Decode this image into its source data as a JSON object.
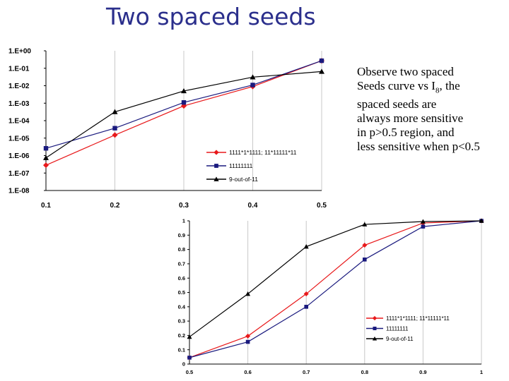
{
  "slide": {
    "title": "Two spaced seeds",
    "note_lines": [
      "Observe two spaced",
      "Seeds curve vs I",
      "spaced seeds are",
      "always more sensitive",
      "in p>0.5 region, and",
      "less sensitive when p<0.5"
    ],
    "note_subscript": "8",
    "note_suffix": ", the"
  },
  "chart_data": [
    {
      "type": "line",
      "yscale": "log",
      "x": [
        0.1,
        0.2,
        0.3,
        0.4,
        0.5
      ],
      "x_tick_labels": [
        "0.1",
        "0.2",
        "0.3",
        "0.4",
        "0.5"
      ],
      "y_tick_labels": [
        "1.E+00",
        "1.E-01",
        "1.E-02",
        "1.E-03",
        "1.E-04",
        "1.E-05",
        "1.E-06",
        "1.E-07",
        "1.E-08"
      ],
      "ylim": [
        1e-08,
        1
      ],
      "xlim": [
        0.1,
        0.5
      ],
      "grid": "x-only",
      "legend": "bottom-right",
      "series": [
        {
          "name": "1111*1*1111; 11*11111*11",
          "color": "#e8191b",
          "marker": "diamond",
          "values": [
            2.8e-07,
            1.5e-05,
            0.0007,
            0.009,
            0.27
          ]
        },
        {
          "name": "11111111",
          "color": "#1a1a7e",
          "marker": "square",
          "values": [
            2.6e-06,
            3.7e-05,
            0.0011,
            0.011,
            0.27
          ]
        },
        {
          "name": "9-out-of-11",
          "color": "#000000",
          "marker": "triangle",
          "values": [
            7.4e-07,
            0.00032,
            0.005,
            0.031,
            0.065
          ]
        }
      ]
    },
    {
      "type": "line",
      "x": [
        0.5,
        0.6,
        0.7,
        0.8,
        0.9,
        1
      ],
      "x_tick_labels": [
        "0.5",
        "0.6",
        "0.7",
        "0.8",
        "0.9",
        "1"
      ],
      "y_tick_labels": [
        "0",
        "0.1",
        "0.2",
        "0.3",
        "0.4",
        "0.5",
        "0.6",
        "0.7",
        "0.8",
        "0.9",
        "1"
      ],
      "ylim": [
        0,
        1
      ],
      "xlim": [
        0.5,
        1
      ],
      "grid": "x-only",
      "legend": "bottom-right",
      "series": [
        {
          "name": "1111*1*1111; 11*11111*11",
          "color": "#e8191b",
          "marker": "diamond",
          "values": [
            0.045,
            0.195,
            0.49,
            0.83,
            0.985,
            1.0
          ]
        },
        {
          "name": "11111111",
          "color": "#1a1a7e",
          "marker": "square",
          "values": [
            0.045,
            0.155,
            0.4,
            0.73,
            0.96,
            1.0
          ]
        },
        {
          "name": "9-out-of-11",
          "color": "#000000",
          "marker": "triangle",
          "values": [
            0.19,
            0.49,
            0.82,
            0.975,
            0.995,
            1.0
          ]
        }
      ]
    }
  ]
}
